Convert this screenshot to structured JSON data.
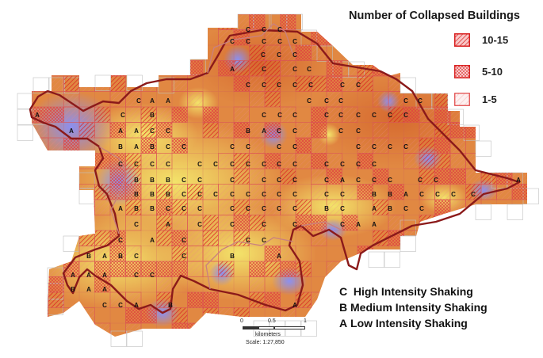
{
  "legend": {
    "title": "Number of Collapsed Buildings",
    "items": [
      {
        "label": "10-15",
        "stroke": "#d92020",
        "fill": "#f4b0b0",
        "pattern": "dense"
      },
      {
        "label": "5-10",
        "stroke": "#d92020",
        "fill": "#f8d2d2",
        "pattern": "cross"
      },
      {
        "label": "1-5",
        "stroke": "#e04040",
        "fill": "#fae6e6",
        "pattern": "light"
      }
    ]
  },
  "intensity_key": [
    {
      "code": "C",
      "label": "High Intensity Shaking"
    },
    {
      "code": "B",
      "label": "Medium Intensity Shaking"
    },
    {
      "code": "A",
      "label": "Low Intensity Shaking"
    }
  ],
  "scale": {
    "start": "0",
    "mid": "0.5",
    "end": "1",
    "units": "kilometers",
    "ratio": "Scale: 1:27,850"
  },
  "colors": {
    "high_intensity": "#d9753a",
    "medium_intensity": "#f0d060",
    "low_intensity": "#9aa0e8",
    "boundary": "#8b1a1a",
    "grid": "#c0c0c0"
  }
}
